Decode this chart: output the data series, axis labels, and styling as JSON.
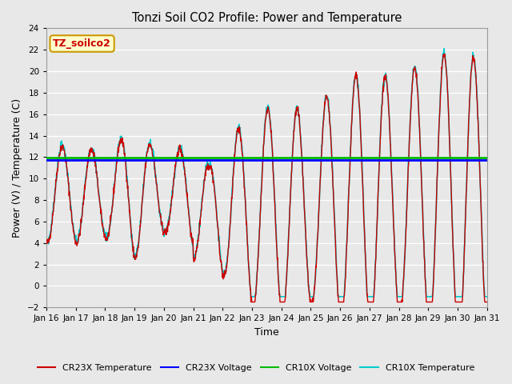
{
  "title": "Tonzi Soil CO2 Profile: Power and Temperature",
  "xlabel": "Time",
  "ylabel": "Power (V) / Temperature (C)",
  "ylim": [
    -2,
    24
  ],
  "yticks": [
    -2,
    0,
    2,
    4,
    6,
    8,
    10,
    12,
    14,
    16,
    18,
    20,
    22,
    24
  ],
  "xtick_labels": [
    "Jan 16",
    "Jan 17",
    "Jan 18",
    "Jan 19",
    "Jan 20",
    "Jan 21",
    "Jan 22",
    "Jan 23",
    "Jan 24",
    "Jan 25",
    "Jan 26",
    "Jan 27",
    "Jan 28",
    "Jan 29",
    "Jan 30",
    "Jan 31"
  ],
  "annotation_text": "TZ_soilco2",
  "annotation_box_color": "#ffffcc",
  "annotation_box_edge": "#cc9900",
  "annotation_text_color": "#cc0000",
  "plot_bg_color": "#e8e8e8",
  "fig_bg_color": "#e8e8e8",
  "cr23x_voltage_value": 11.75,
  "cr10x_voltage_value": 11.95,
  "cr23x_voltage_color": "#0000ff",
  "cr10x_voltage_color": "#00bb00",
  "cr23x_temp_color": "#cc0000",
  "cr10x_temp_color": "#00cccc",
  "legend_entries": [
    "CR23X Temperature",
    "CR23X Voltage",
    "CR10X Voltage",
    "CR10X Temperature"
  ]
}
